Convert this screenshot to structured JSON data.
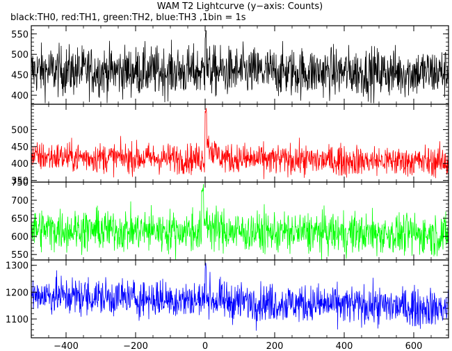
{
  "title": "WAM T2 Lightcurve (y−axis: Counts)",
  "subtitle": "black:TH0, red:TH1, green:TH2, blue:TH3 ,1bin = 1s",
  "chart_data": {
    "type": "line",
    "title": "WAM T2 Lightcurve (y−axis: Counts)",
    "subtitle": "black:TH0, red:TH1, green:TH2, blue:TH3 ,1bin = 1s",
    "xlabel": "",
    "ylabel": "",
    "bin_size_s": 1,
    "xlim": [
      -500,
      700
    ],
    "x_ticks": [
      -400,
      -200,
      0,
      200,
      400,
      600
    ],
    "x_tick_labels": [
      "−400",
      "−200",
      "0",
      "200",
      "400",
      "600"
    ],
    "panels": [
      {
        "series_name": "TH0",
        "color": "#000000",
        "ylim": [
          378,
          570
        ],
        "y_ticks": [
          400,
          450,
          500,
          550
        ],
        "baseline_start": 460,
        "baseline_end": 455,
        "noise": 30,
        "burst_peak": 560,
        "burst_start": 0,
        "burst_width": 4,
        "burst_excess": 15,
        "burst_decay": 8
      },
      {
        "series_name": "TH1",
        "color": "#ff0000",
        "ylim": [
          345,
          575
        ],
        "y_ticks": [
          350,
          400,
          450,
          500
        ],
        "baseline_start": 420,
        "baseline_end": 405,
        "noise": 22,
        "burst_peak": 565,
        "burst_start": 0,
        "burst_width": 5,
        "burst_excess": 70,
        "burst_decay": 20
      },
      {
        "series_name": "TH2",
        "color": "#00ff00",
        "ylim": [
          535,
          750
        ],
        "y_ticks": [
          550,
          600,
          650,
          700,
          750
        ],
        "baseline_start": 620,
        "baseline_end": 605,
        "noise": 28,
        "burst_peak": 745,
        "burst_start": -10,
        "burst_width": 6,
        "burst_excess": 45,
        "burst_decay": 25
      },
      {
        "series_name": "TH3",
        "color": "#0000ff",
        "ylim": [
          1030,
          1320
        ],
        "y_ticks": [
          1100,
          1200,
          1300
        ],
        "baseline_start": 1190,
        "baseline_end": 1140,
        "noise": 35,
        "burst_peak": 1310,
        "burst_start": 0,
        "burst_width": 4,
        "burst_excess": 40,
        "burst_decay": 10
      }
    ]
  }
}
